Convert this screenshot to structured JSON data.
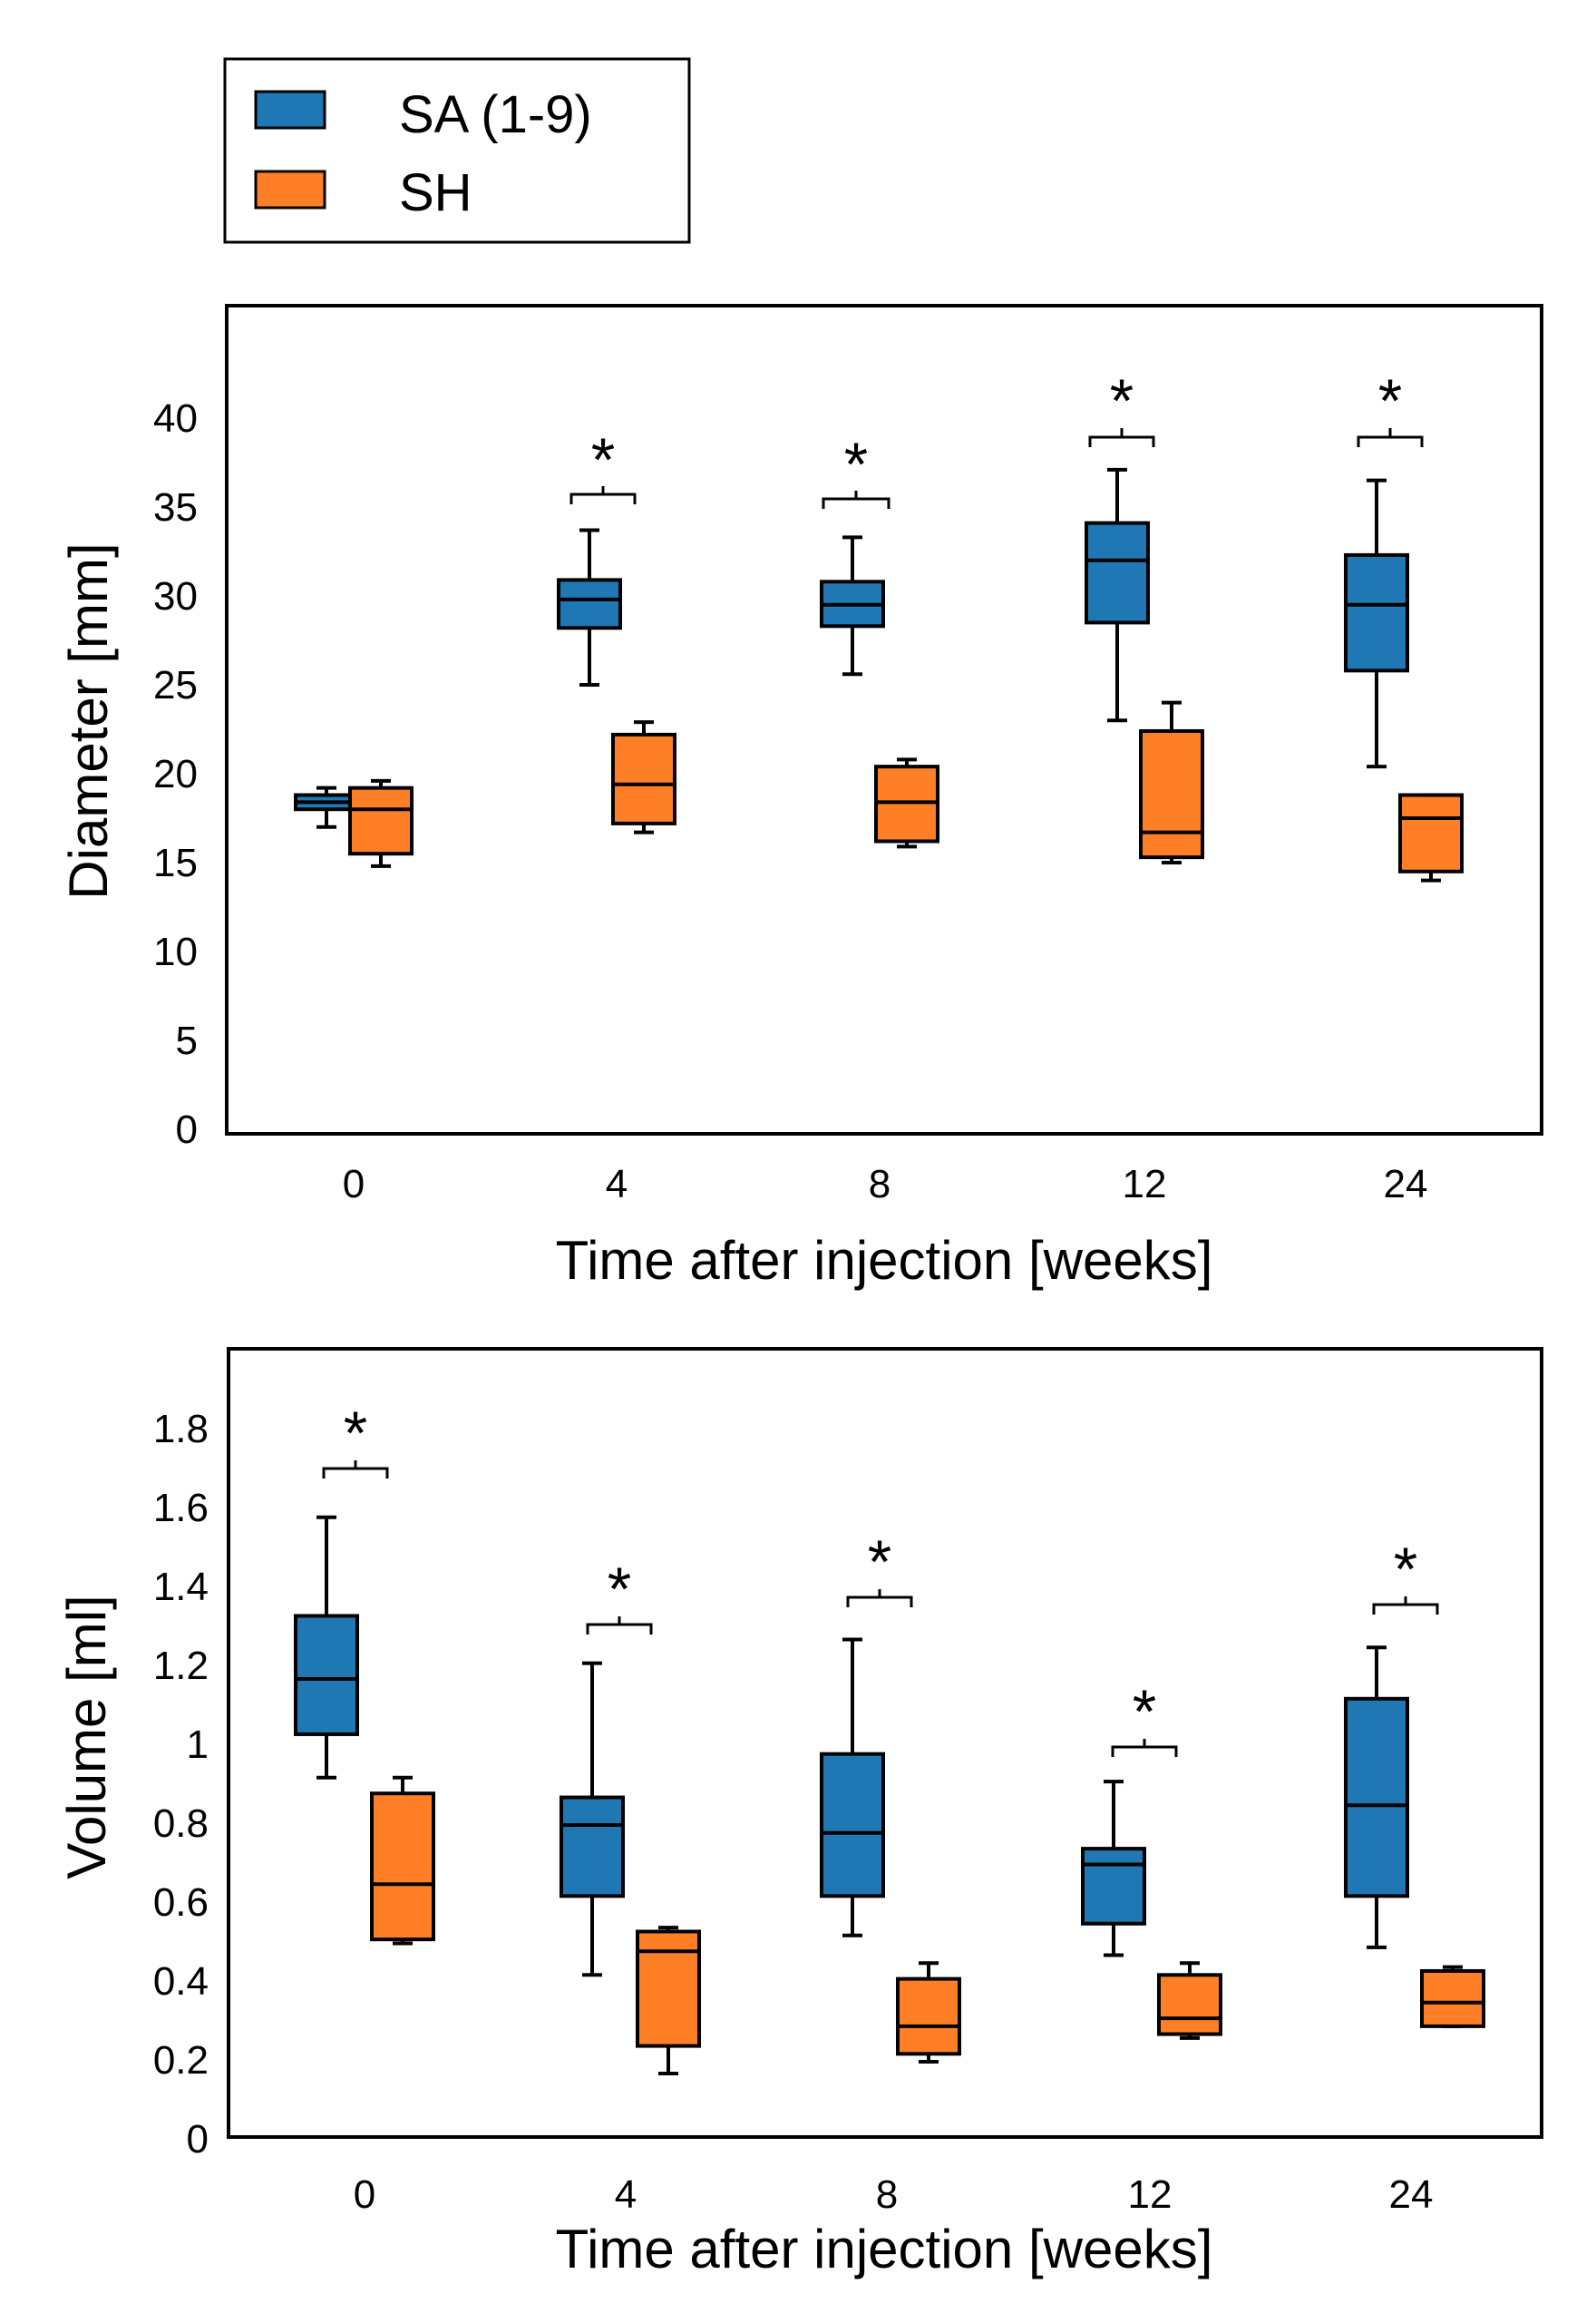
{
  "legend": {
    "items": [
      {
        "label": "SA (1-9)",
        "color": "#1f77b4"
      },
      {
        "label": "SH",
        "color": "#ff7f27"
      }
    ]
  },
  "chart_data": [
    {
      "type": "box",
      "ylabel": "Diameter [mm]",
      "xlabel": "Time after injection [weeks]",
      "ylim": [
        0,
        45
      ],
      "yticks": [
        "0",
        "5",
        "10",
        "15",
        "20",
        "25",
        "30",
        "35",
        "40"
      ],
      "categories": [
        "0",
        "4",
        "8",
        "12",
        "24"
      ],
      "series": [
        {
          "name": "SA (1-9)",
          "color": "#1f77b4",
          "boxes": [
            {
              "min": 17.0,
              "q1": 18.0,
              "median": 18.4,
              "q3": 18.8,
              "max": 19.2
            },
            {
              "min": 25.0,
              "q1": 28.2,
              "median": 29.8,
              "q3": 30.9,
              "max": 33.7
            },
            {
              "min": 25.6,
              "q1": 28.3,
              "median": 29.5,
              "q3": 30.8,
              "max": 33.3
            },
            {
              "min": 23.0,
              "q1": 28.5,
              "median": 32.0,
              "q3": 34.1,
              "max": 37.1
            },
            {
              "min": 20.4,
              "q1": 25.8,
              "median": 29.5,
              "q3": 32.3,
              "max": 36.5
            }
          ]
        },
        {
          "name": "SH",
          "color": "#ff7f27",
          "boxes": [
            {
              "min": 14.8,
              "q1": 15.5,
              "median": 18.0,
              "q3": 19.2,
              "max": 19.6
            },
            {
              "min": 16.7,
              "q1": 17.2,
              "median": 19.4,
              "q3": 22.2,
              "max": 22.9
            },
            {
              "min": 15.9,
              "q1": 16.2,
              "median": 18.4,
              "q3": 20.4,
              "max": 20.8
            },
            {
              "min": 15.0,
              "q1": 15.3,
              "median": 16.7,
              "q3": 22.4,
              "max": 24.0
            },
            {
              "min": 14.0,
              "q1": 14.5,
              "median": 17.5,
              "q3": 18.8,
              "max": 18.8
            }
          ]
        }
      ],
      "annotations": [
        "*",
        "*",
        "*",
        "*"
      ]
    },
    {
      "type": "box",
      "ylabel": "Volume [ml]",
      "xlabel": "Time after injection [weeks]",
      "ylim": [
        0,
        2.0
      ],
      "yticks": [
        "0",
        "0.2",
        "0.4",
        "0.6",
        "0.8",
        "1",
        "1.2",
        "1.4",
        "1.6",
        "1.8"
      ],
      "categories": [
        "0",
        "4",
        "8",
        "12",
        "24"
      ],
      "series": [
        {
          "name": "SA (1-9)",
          "color": "#1f77b4",
          "boxes": [
            {
              "min": 0.92,
              "q1": 1.03,
              "median": 1.17,
              "q3": 1.33,
              "max": 1.58
            },
            {
              "min": 0.42,
              "q1": 0.62,
              "median": 0.8,
              "q3": 0.87,
              "max": 1.21
            },
            {
              "min": 0.52,
              "q1": 0.62,
              "median": 0.78,
              "q3": 0.98,
              "max": 1.27
            },
            {
              "min": 0.47,
              "q1": 0.55,
              "median": 0.7,
              "q3": 0.74,
              "max": 0.91
            },
            {
              "min": 0.49,
              "q1": 0.62,
              "median": 0.85,
              "q3": 1.12,
              "max": 1.25
            }
          ]
        },
        {
          "name": "SH",
          "color": "#ff7f27",
          "boxes": [
            {
              "min": 0.5,
              "q1": 0.51,
              "median": 0.65,
              "q3": 0.88,
              "max": 0.92
            },
            {
              "min": 0.17,
              "q1": 0.24,
              "median": 0.48,
              "q3": 0.53,
              "max": 0.54
            },
            {
              "min": 0.2,
              "q1": 0.22,
              "median": 0.29,
              "q3": 0.41,
              "max": 0.45
            },
            {
              "min": 0.26,
              "q1": 0.27,
              "median": 0.31,
              "q3": 0.42,
              "max": 0.45
            },
            {
              "min": 0.29,
              "q1": 0.29,
              "median": 0.35,
              "q3": 0.43,
              "max": 0.44
            }
          ]
        }
      ],
      "annotations": [
        "*",
        "*",
        "*",
        "*",
        "*"
      ]
    }
  ]
}
